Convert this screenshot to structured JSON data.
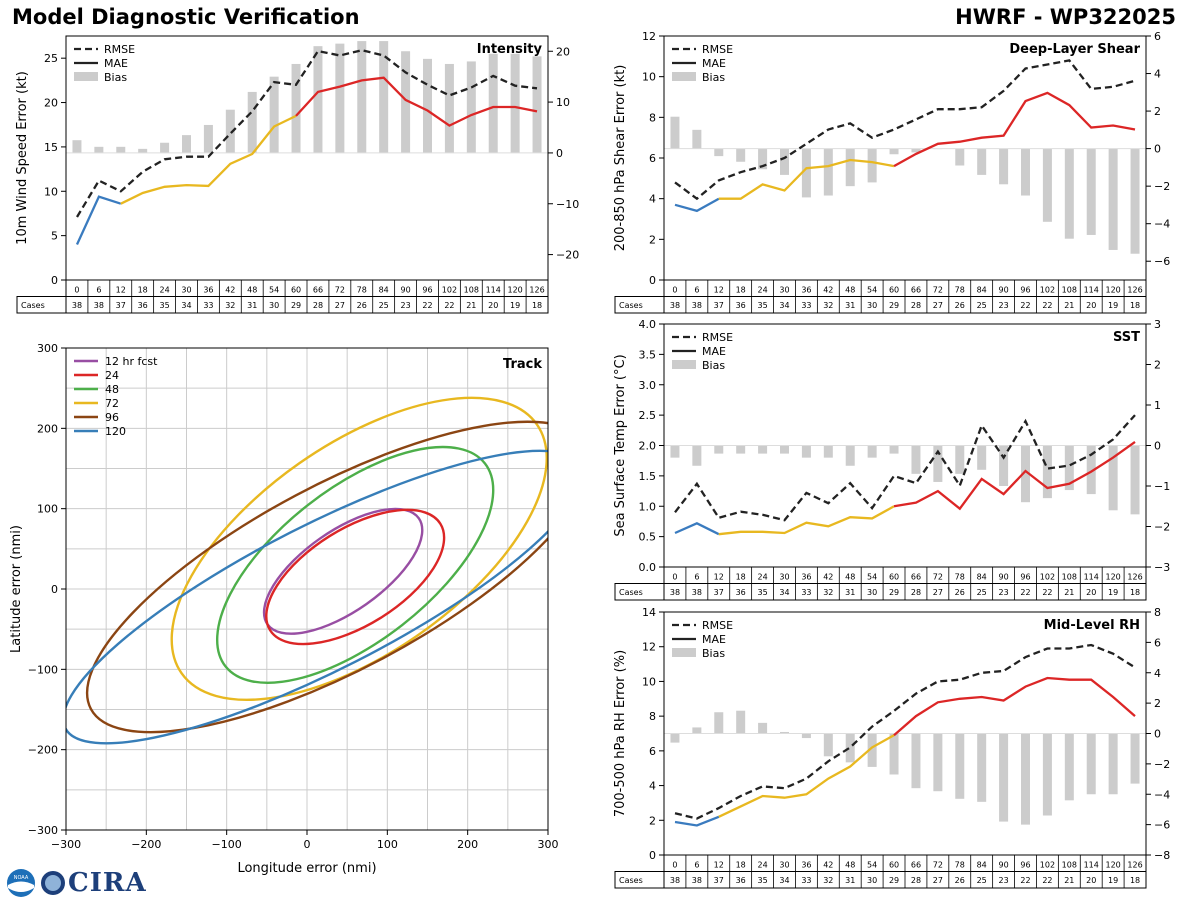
{
  "header": {
    "title": "Model Diagnostic Verification",
    "model": "HWRF - WP322025"
  },
  "logo": {
    "text": "CIRA",
    "seal_text": "NOAA"
  },
  "colors": {
    "rmse": "#222222",
    "bias": "#cccccc",
    "mae_early": "#3a7bbf",
    "mae_mid": "#e8b820",
    "mae_late": "#dc2626",
    "grid": "#cccccc"
  },
  "forecast_hours": [
    0,
    6,
    12,
    18,
    24,
    30,
    36,
    42,
    48,
    54,
    60,
    66,
    72,
    78,
    84,
    90,
    96,
    102,
    108,
    114,
    120,
    126
  ],
  "cases_label": "Cases",
  "chart_data": [
    {
      "id": "intensity",
      "type": "line",
      "title": "Intensity",
      "ylabel": "10m Wind Speed Error (kt)",
      "ylim": [
        0,
        27.5
      ],
      "yticks": [
        0,
        5,
        10,
        15,
        20,
        25
      ],
      "y2lim": [
        -25,
        23
      ],
      "y2ticks": [
        -20,
        -10,
        0,
        10,
        20
      ],
      "legend": [
        "RMSE",
        "MAE",
        "Bias"
      ],
      "legend_position": "top-left",
      "rmse": [
        7.1,
        11.2,
        10.0,
        12.2,
        13.6,
        13.9,
        13.9,
        16.5,
        19.0,
        22.3,
        22.0,
        25.8,
        25.3,
        25.9,
        25.3,
        23.4,
        22.0,
        20.8,
        21.7,
        23.0,
        21.9,
        21.6
      ],
      "mae": [
        4.0,
        9.4,
        8.6,
        9.8,
        10.5,
        10.7,
        10.6,
        13.1,
        14.2,
        17.3,
        18.5,
        21.2,
        21.8,
        22.5,
        22.8,
        20.3,
        19.1,
        17.4,
        18.6,
        19.5,
        19.5,
        19.0
      ],
      "bias": [
        2.5,
        1.2,
        1.2,
        0.8,
        2.0,
        3.5,
        5.5,
        8.5,
        12.0,
        15.0,
        17.5,
        21.0,
        21.5,
        22.0,
        22.0,
        20.0,
        18.5,
        17.5,
        18.0,
        19.5,
        19.5,
        19.0
      ],
      "cases": [
        38,
        38,
        37,
        36,
        35,
        34,
        33,
        32,
        31,
        30,
        29,
        28,
        27,
        26,
        25,
        23,
        22,
        22,
        21,
        20,
        19,
        18
      ]
    },
    {
      "id": "shear",
      "type": "line",
      "title": "Deep-Layer Shear",
      "ylabel": "200-850 hPa Shear Error (kt)",
      "ylim": [
        0,
        12
      ],
      "yticks": [
        0,
        2,
        4,
        6,
        8,
        10,
        12
      ],
      "y2lim": [
        -7,
        6
      ],
      "y2ticks": [
        -6,
        -4,
        -2,
        0,
        2,
        4,
        6
      ],
      "legend": [
        "RMSE",
        "MAE",
        "Bias"
      ],
      "legend_position": "top-left",
      "rmse": [
        4.8,
        4.0,
        4.9,
        5.3,
        5.6,
        6.0,
        6.7,
        7.4,
        7.7,
        7.0,
        7.4,
        7.9,
        8.4,
        8.4,
        8.5,
        9.3,
        10.4,
        10.6,
        10.8,
        9.4,
        9.5,
        9.8
      ],
      "mae": [
        3.7,
        3.4,
        4.0,
        4.0,
        4.7,
        4.4,
        5.5,
        5.6,
        5.9,
        5.8,
        5.6,
        6.2,
        6.7,
        6.8,
        7.0,
        7.1,
        8.8,
        9.2,
        8.6,
        7.5,
        7.6,
        7.4
      ],
      "bias": [
        1.7,
        1.0,
        -0.4,
        -0.7,
        -1.1,
        -1.4,
        -2.6,
        -2.5,
        -2.0,
        -1.8,
        -0.3,
        -0.2,
        0.0,
        -0.9,
        -1.4,
        -1.9,
        -2.5,
        -3.9,
        -4.8,
        -4.6,
        -5.4,
        -5.6
      ],
      "cases": [
        38,
        38,
        37,
        36,
        35,
        34,
        33,
        32,
        31,
        30,
        29,
        28,
        27,
        26,
        25,
        23,
        22,
        22,
        21,
        20,
        19,
        18
      ]
    },
    {
      "id": "sst",
      "type": "line",
      "title": "SST",
      "ylabel": "Sea Surface Temp Error (°C)",
      "ylim": [
        0,
        4.0
      ],
      "yticks": [
        0.0,
        0.5,
        1.0,
        1.5,
        2.0,
        2.5,
        3.0,
        3.5,
        4.0
      ],
      "y2lim": [
        -3,
        3
      ],
      "y2ticks": [
        -3,
        -2,
        -1,
        0,
        1,
        2,
        3
      ],
      "legend": [
        "RMSE",
        "MAE",
        "Bias"
      ],
      "legend_position": "top-left",
      "rmse": [
        0.9,
        1.37,
        0.81,
        0.91,
        0.86,
        0.77,
        1.22,
        1.05,
        1.38,
        0.97,
        1.5,
        1.38,
        1.9,
        1.34,
        2.33,
        1.8,
        2.4,
        1.62,
        1.67,
        1.85,
        2.1,
        2.5
      ],
      "mae": [
        0.56,
        0.72,
        0.54,
        0.58,
        0.58,
        0.56,
        0.73,
        0.67,
        0.82,
        0.8,
        1.0,
        1.06,
        1.25,
        0.96,
        1.45,
        1.2,
        1.58,
        1.3,
        1.37,
        1.57,
        1.8,
        2.06
      ],
      "bias": [
        -0.3,
        -0.5,
        -0.2,
        -0.2,
        -0.2,
        -0.2,
        -0.3,
        -0.3,
        -0.5,
        -0.3,
        -0.2,
        -0.7,
        -0.9,
        -0.7,
        -0.6,
        -1.0,
        -1.4,
        -1.3,
        -1.1,
        -1.2,
        -1.6,
        -1.7
      ],
      "cases": [
        38,
        38,
        37,
        36,
        35,
        34,
        33,
        32,
        31,
        30,
        29,
        28,
        27,
        26,
        25,
        23,
        22,
        22,
        21,
        20,
        19,
        18
      ]
    },
    {
      "id": "rh",
      "type": "line",
      "title": "Mid-Level RH",
      "ylabel": "700-500 hPa RH Error (%)",
      "ylim": [
        0,
        14
      ],
      "yticks": [
        0,
        2,
        4,
        6,
        8,
        10,
        12,
        14
      ],
      "y2lim": [
        -8,
        8
      ],
      "y2ticks": [
        -8,
        -6,
        -4,
        -2,
        0,
        2,
        4,
        6,
        8
      ],
      "legend": [
        "RMSE",
        "MAE",
        "Bias"
      ],
      "legend_position": "top-left",
      "rmse": [
        2.4,
        2.1,
        2.7,
        3.4,
        3.95,
        3.85,
        4.4,
        5.4,
        6.2,
        7.4,
        8.3,
        9.3,
        10.0,
        10.1,
        10.5,
        10.6,
        11.4,
        11.9,
        11.9,
        12.1,
        11.6,
        10.8
      ],
      "mae": [
        1.9,
        1.7,
        2.2,
        2.8,
        3.4,
        3.3,
        3.5,
        4.4,
        5.1,
        6.2,
        6.9,
        8.0,
        8.8,
        9.0,
        9.1,
        8.9,
        9.7,
        10.2,
        10.1,
        10.1,
        9.1,
        8.0
      ],
      "bias": [
        -0.6,
        0.4,
        1.4,
        1.5,
        0.7,
        0.1,
        -0.3,
        -1.5,
        -1.9,
        -2.2,
        -2.7,
        -3.6,
        -3.8,
        -4.3,
        -4.5,
        -5.8,
        -6.0,
        -5.4,
        -4.4,
        -4.0,
        -4.0,
        -3.3
      ],
      "cases": [
        38,
        38,
        37,
        36,
        35,
        34,
        33,
        32,
        31,
        30,
        29,
        28,
        27,
        26,
        25,
        23,
        22,
        22,
        21,
        20,
        19,
        18
      ]
    },
    {
      "id": "track",
      "type": "ellipse",
      "title": "Track",
      "xlabel": "Longitude error (nmi)",
      "ylabel": "Latitude error (nmi)",
      "xlim": [
        -300,
        300
      ],
      "ylim": [
        -300,
        300
      ],
      "ticks": [
        -300,
        -200,
        -100,
        0,
        100,
        200,
        300
      ],
      "legend_position": "top-left",
      "ellipses": [
        {
          "label": "12 hr fcst",
          "color": "#984ea3",
          "cx": 45,
          "cy": 22,
          "a": 115,
          "b": 50,
          "angle": 35
        },
        {
          "label": "24",
          "color": "#dc2626",
          "cx": 60,
          "cy": 15,
          "a": 125,
          "b": 60,
          "angle": 32
        },
        {
          "label": "48",
          "color": "#4daf4a",
          "cx": 60,
          "cy": 30,
          "a": 205,
          "b": 95,
          "angle": 38
        },
        {
          "label": "72",
          "color": "#e8b820",
          "cx": 65,
          "cy": 50,
          "a": 270,
          "b": 130,
          "angle": 35
        },
        {
          "label": "96",
          "color": "#8b4513",
          "cx": 40,
          "cy": 15,
          "a": 350,
          "b": 115,
          "angle": 28
        },
        {
          "label": "120",
          "color": "#377eb8",
          "cx": 20,
          "cy": -10,
          "a": 360,
          "b": 90,
          "angle": 27
        }
      ]
    }
  ]
}
